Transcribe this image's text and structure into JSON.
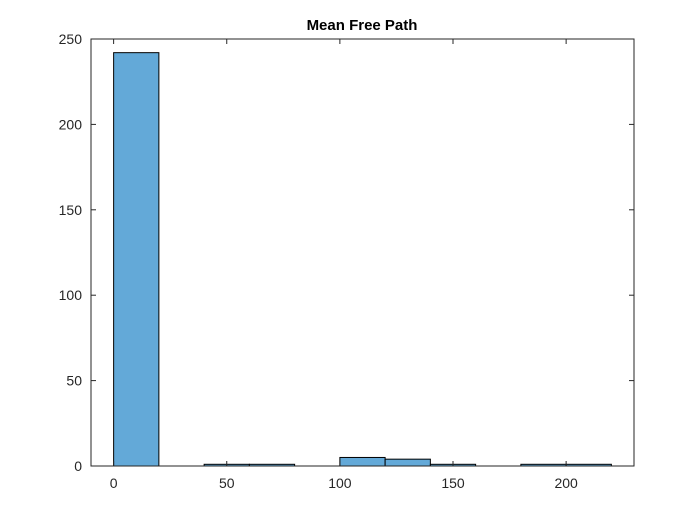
{
  "chart_data": {
    "type": "bar",
    "title": "Mean Free Path",
    "xlabel": "",
    "ylabel": "",
    "xlim": [
      -10,
      230
    ],
    "ylim": [
      0,
      250
    ],
    "xticks": [
      0,
      50,
      100,
      150,
      200
    ],
    "yticks": [
      0,
      50,
      100,
      150,
      200,
      250
    ],
    "bin_edges": [
      0,
      20,
      40,
      60,
      80,
      100,
      120,
      140,
      160,
      180,
      200,
      220
    ],
    "counts": [
      242,
      0,
      1,
      1,
      0,
      5,
      4,
      1,
      0,
      1,
      1
    ],
    "bar_color": "#63a9d8",
    "grid": false,
    "legend": "none"
  }
}
